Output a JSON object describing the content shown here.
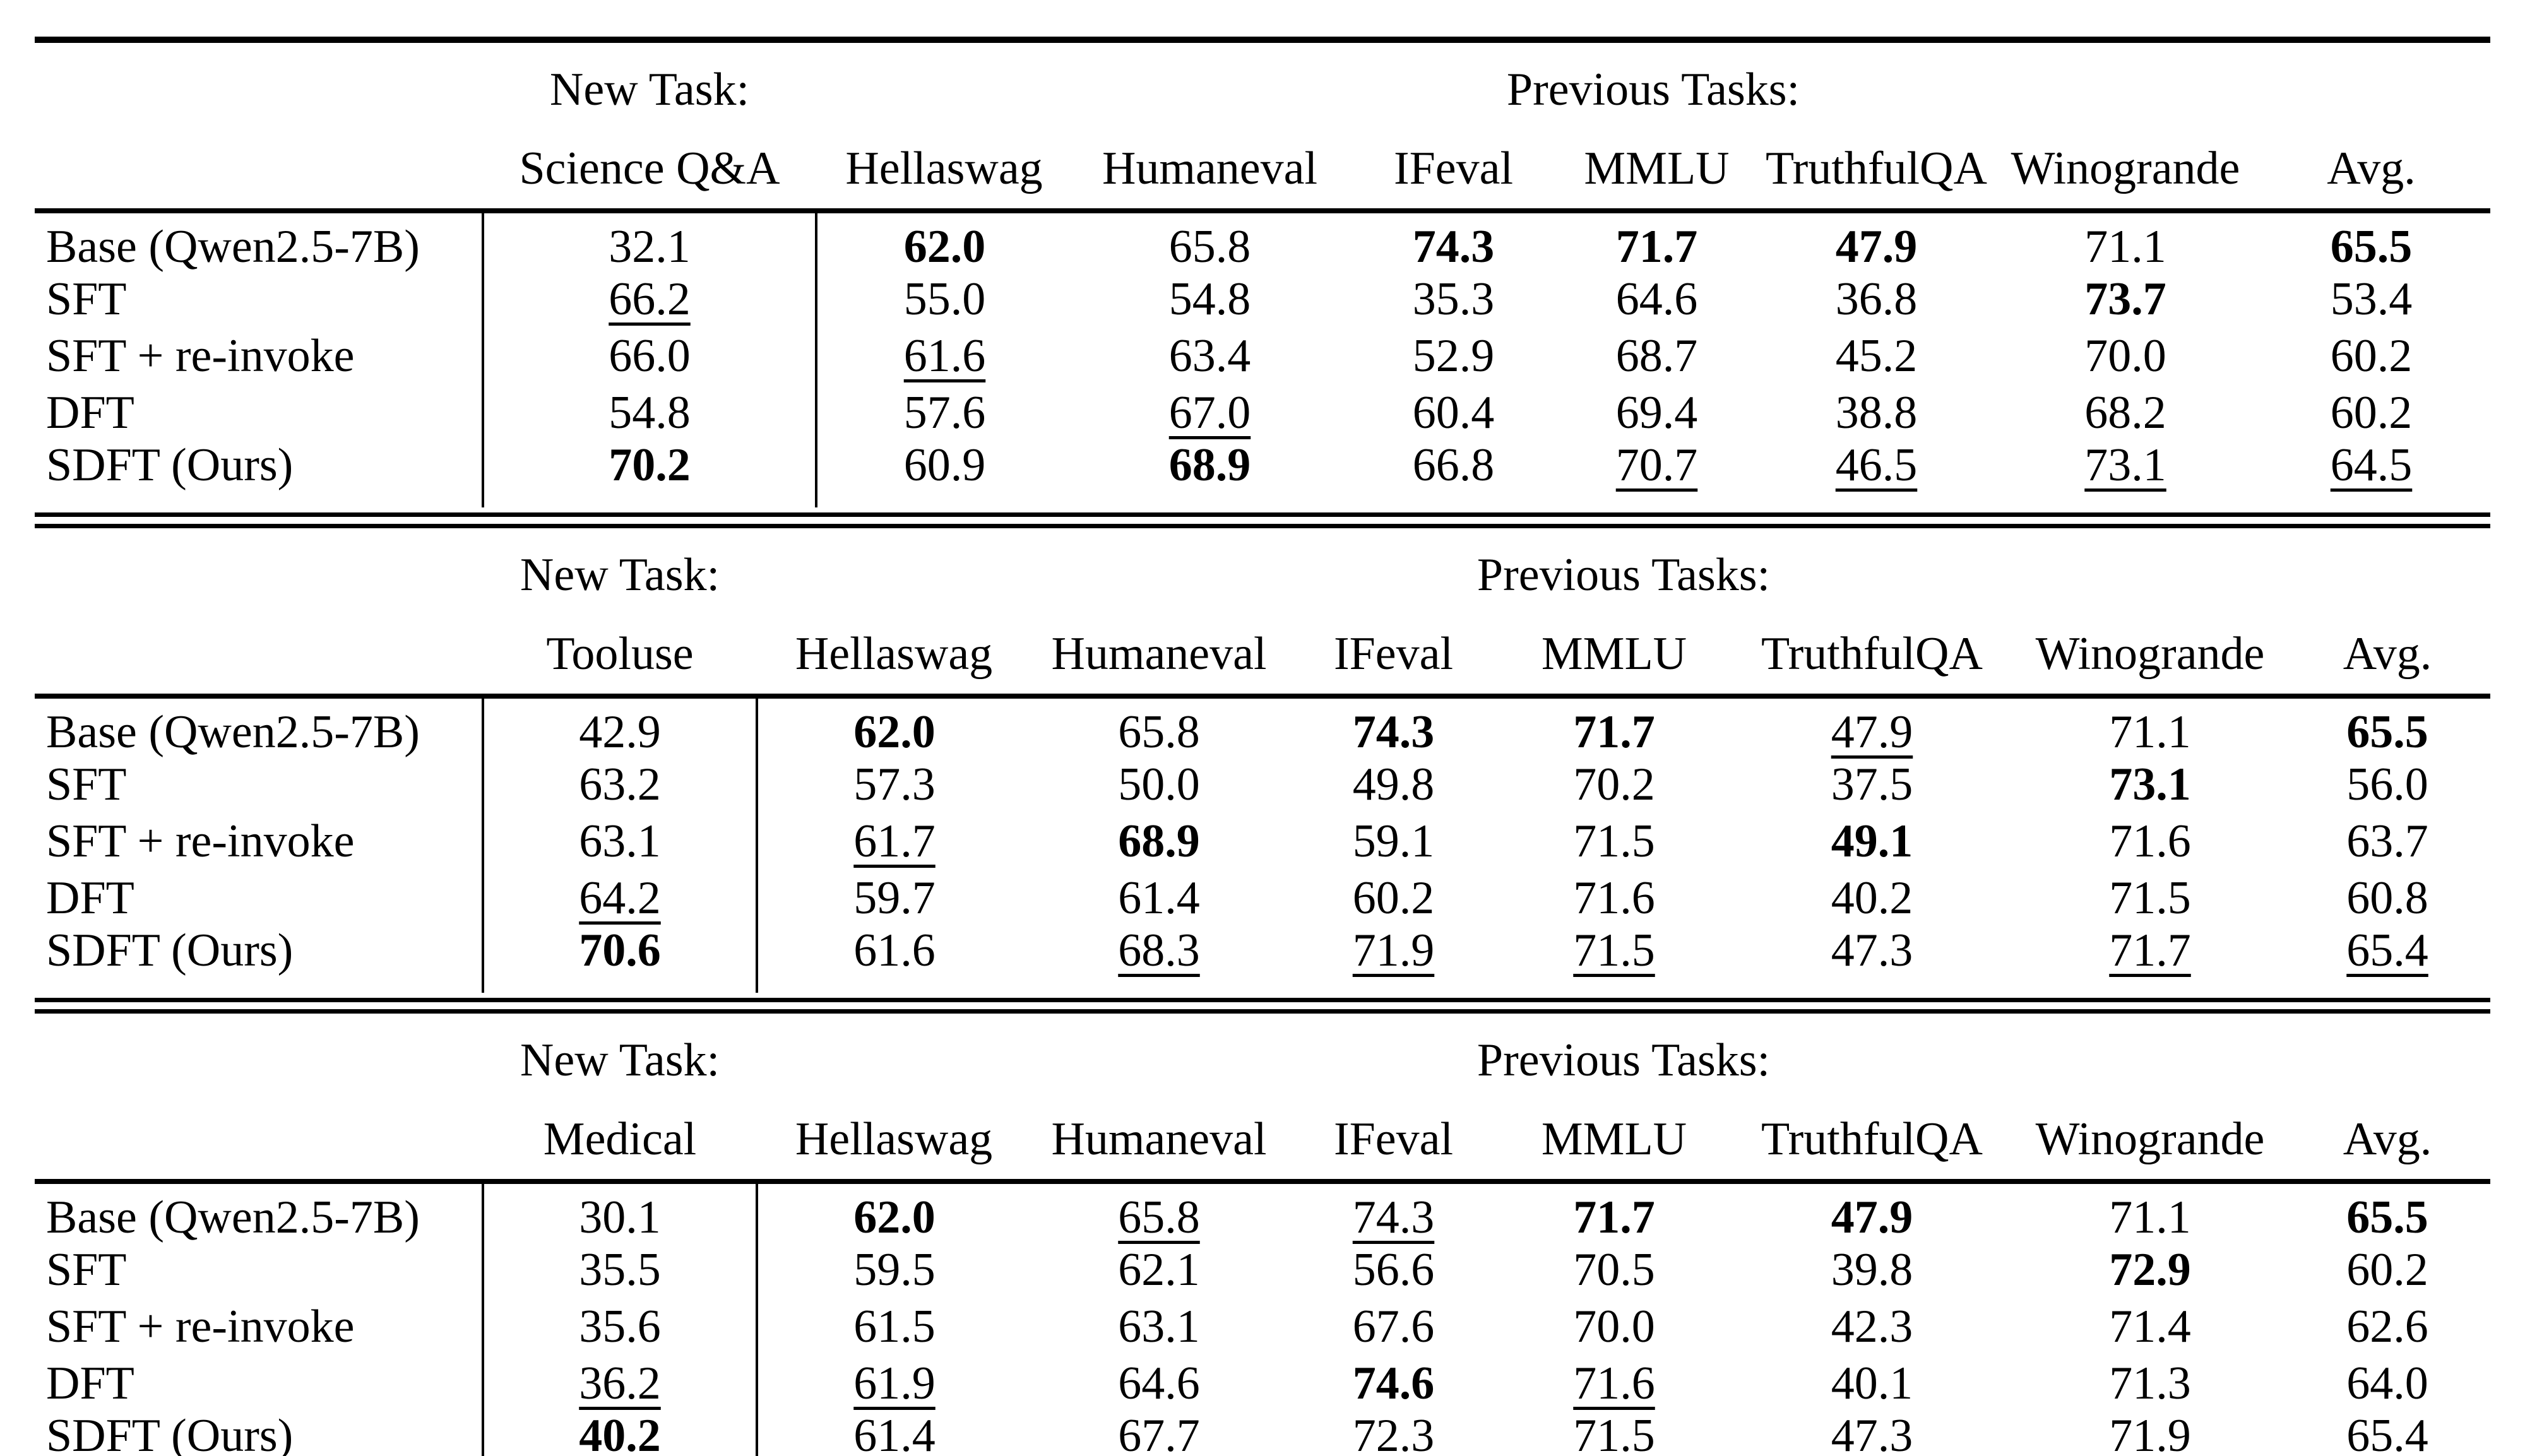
{
  "page": {
    "background": "#ffffff",
    "text_color": "#000000"
  },
  "tables": [
    {
      "new_task_header": "New Task:",
      "previous_tasks_header": "Previous Tasks:",
      "new_task_column": "Science Q&A",
      "previous_columns": [
        "Hellaswag",
        "Humaneval",
        "IFeval",
        "MMLU",
        "TruthfulQA",
        "Winogrande",
        "Avg."
      ],
      "rows": [
        {
          "label": "Base (Qwen2.5-7B)",
          "new_task": {
            "v": "32.1",
            "s": ""
          },
          "cells": [
            {
              "v": "62.0",
              "s": "b"
            },
            {
              "v": "65.8",
              "s": ""
            },
            {
              "v": "74.3",
              "s": "b"
            },
            {
              "v": "71.7",
              "s": "b"
            },
            {
              "v": "47.9",
              "s": "b"
            },
            {
              "v": "71.1",
              "s": ""
            },
            {
              "v": "65.5",
              "s": "b"
            }
          ]
        },
        {
          "label": "SFT",
          "new_task": {
            "v": "66.2",
            "s": "u"
          },
          "cells": [
            {
              "v": "55.0",
              "s": ""
            },
            {
              "v": "54.8",
              "s": ""
            },
            {
              "v": "35.3",
              "s": ""
            },
            {
              "v": "64.6",
              "s": ""
            },
            {
              "v": "36.8",
              "s": ""
            },
            {
              "v": "73.7",
              "s": "b"
            },
            {
              "v": "53.4",
              "s": ""
            }
          ]
        },
        {
          "label": "SFT + re-invoke",
          "new_task": {
            "v": "66.0",
            "s": ""
          },
          "cells": [
            {
              "v": "61.6",
              "s": "u"
            },
            {
              "v": "63.4",
              "s": ""
            },
            {
              "v": "52.9",
              "s": ""
            },
            {
              "v": "68.7",
              "s": ""
            },
            {
              "v": "45.2",
              "s": ""
            },
            {
              "v": "70.0",
              "s": ""
            },
            {
              "v": "60.2",
              "s": ""
            }
          ]
        },
        {
          "label": "DFT",
          "new_task": {
            "v": "54.8",
            "s": ""
          },
          "cells": [
            {
              "v": "57.6",
              "s": ""
            },
            {
              "v": "67.0",
              "s": "u"
            },
            {
              "v": "60.4",
              "s": ""
            },
            {
              "v": "69.4",
              "s": ""
            },
            {
              "v": "38.8",
              "s": ""
            },
            {
              "v": "68.2",
              "s": ""
            },
            {
              "v": "60.2",
              "s": ""
            }
          ]
        },
        {
          "label": "SDFT (Ours)",
          "new_task": {
            "v": "70.2",
            "s": "b"
          },
          "cells": [
            {
              "v": "60.9",
              "s": ""
            },
            {
              "v": "68.9",
              "s": "b"
            },
            {
              "v": "66.8",
              "s": ""
            },
            {
              "v": "70.7",
              "s": "u"
            },
            {
              "v": "46.5",
              "s": "u"
            },
            {
              "v": "73.1",
              "s": "u"
            },
            {
              "v": "64.5",
              "s": "u"
            }
          ]
        }
      ]
    },
    {
      "new_task_header": "New Task:",
      "previous_tasks_header": "Previous Tasks:",
      "new_task_column": "Tooluse",
      "previous_columns": [
        "Hellaswag",
        "Humaneval",
        "IFeval",
        "MMLU",
        "TruthfulQA",
        "Winogrande",
        "Avg."
      ],
      "rows": [
        {
          "label": "Base (Qwen2.5-7B)",
          "new_task": {
            "v": "42.9",
            "s": ""
          },
          "cells": [
            {
              "v": "62.0",
              "s": "b"
            },
            {
              "v": "65.8",
              "s": ""
            },
            {
              "v": "74.3",
              "s": "b"
            },
            {
              "v": "71.7",
              "s": "b"
            },
            {
              "v": "47.9",
              "s": "u"
            },
            {
              "v": "71.1",
              "s": ""
            },
            {
              "v": "65.5",
              "s": "b"
            }
          ]
        },
        {
          "label": "SFT",
          "new_task": {
            "v": "63.2",
            "s": ""
          },
          "cells": [
            {
              "v": "57.3",
              "s": ""
            },
            {
              "v": "50.0",
              "s": ""
            },
            {
              "v": "49.8",
              "s": ""
            },
            {
              "v": "70.2",
              "s": ""
            },
            {
              "v": "37.5",
              "s": ""
            },
            {
              "v": "73.1",
              "s": "b"
            },
            {
              "v": "56.0",
              "s": ""
            }
          ]
        },
        {
          "label": "SFT + re-invoke",
          "new_task": {
            "v": "63.1",
            "s": ""
          },
          "cells": [
            {
              "v": "61.7",
              "s": "u"
            },
            {
              "v": "68.9",
              "s": "b"
            },
            {
              "v": "59.1",
              "s": ""
            },
            {
              "v": "71.5",
              "s": ""
            },
            {
              "v": "49.1",
              "s": "b"
            },
            {
              "v": "71.6",
              "s": ""
            },
            {
              "v": "63.7",
              "s": ""
            }
          ]
        },
        {
          "label": "DFT",
          "new_task": {
            "v": "64.2",
            "s": "u"
          },
          "cells": [
            {
              "v": "59.7",
              "s": ""
            },
            {
              "v": "61.4",
              "s": ""
            },
            {
              "v": "60.2",
              "s": ""
            },
            {
              "v": "71.6",
              "s": ""
            },
            {
              "v": "40.2",
              "s": ""
            },
            {
              "v": "71.5",
              "s": ""
            },
            {
              "v": "60.8",
              "s": ""
            }
          ]
        },
        {
          "label": "SDFT (Ours)",
          "new_task": {
            "v": "70.6",
            "s": "b"
          },
          "cells": [
            {
              "v": "61.6",
              "s": ""
            },
            {
              "v": "68.3",
              "s": "u"
            },
            {
              "v": "71.9",
              "s": "u"
            },
            {
              "v": "71.5",
              "s": "u"
            },
            {
              "v": "47.3",
              "s": ""
            },
            {
              "v": "71.7",
              "s": "u"
            },
            {
              "v": "65.4",
              "s": "u"
            }
          ]
        }
      ]
    },
    {
      "new_task_header": "New Task:",
      "previous_tasks_header": "Previous Tasks:",
      "new_task_column": "Medical",
      "previous_columns": [
        "Hellaswag",
        "Humaneval",
        "IFeval",
        "MMLU",
        "TruthfulQA",
        "Winogrande",
        "Avg."
      ],
      "rows": [
        {
          "label": "Base (Qwen2.5-7B)",
          "new_task": {
            "v": "30.1",
            "s": ""
          },
          "cells": [
            {
              "v": "62.0",
              "s": "b"
            },
            {
              "v": "65.8",
              "s": "u"
            },
            {
              "v": "74.3",
              "s": "u"
            },
            {
              "v": "71.7",
              "s": "b"
            },
            {
              "v": "47.9",
              "s": "b"
            },
            {
              "v": "71.1",
              "s": ""
            },
            {
              "v": "65.5",
              "s": "b"
            }
          ]
        },
        {
          "label": "SFT",
          "new_task": {
            "v": "35.5",
            "s": ""
          },
          "cells": [
            {
              "v": "59.5",
              "s": ""
            },
            {
              "v": "62.1",
              "s": ""
            },
            {
              "v": "56.6",
              "s": ""
            },
            {
              "v": "70.5",
              "s": ""
            },
            {
              "v": "39.8",
              "s": ""
            },
            {
              "v": "72.9",
              "s": "b"
            },
            {
              "v": "60.2",
              "s": ""
            }
          ]
        },
        {
          "label": "SFT + re-invoke",
          "new_task": {
            "v": "35.6",
            "s": ""
          },
          "cells": [
            {
              "v": "61.5",
              "s": ""
            },
            {
              "v": "63.1",
              "s": ""
            },
            {
              "v": "67.6",
              "s": ""
            },
            {
              "v": "70.0",
              "s": ""
            },
            {
              "v": "42.3",
              "s": ""
            },
            {
              "v": "71.4",
              "s": ""
            },
            {
              "v": "62.6",
              "s": ""
            }
          ]
        },
        {
          "label": "DFT",
          "new_task": {
            "v": "36.2",
            "s": "u"
          },
          "cells": [
            {
              "v": "61.9",
              "s": "u"
            },
            {
              "v": "64.6",
              "s": ""
            },
            {
              "v": "74.6",
              "s": "b"
            },
            {
              "v": "71.6",
              "s": "u"
            },
            {
              "v": "40.1",
              "s": ""
            },
            {
              "v": "71.3",
              "s": ""
            },
            {
              "v": "64.0",
              "s": ""
            }
          ]
        },
        {
          "label": "SDFT (Ours)",
          "new_task": {
            "v": "40.2",
            "s": "b"
          },
          "cells": [
            {
              "v": "61.4",
              "s": ""
            },
            {
              "v": "67.7",
              "s": ""
            },
            {
              "v": "72.3",
              "s": ""
            },
            {
              "v": "71.5",
              "s": ""
            },
            {
              "v": "47.3",
              "s": "u"
            },
            {
              "v": "71.9",
              "s": "u"
            },
            {
              "v": "65.4",
              "s": "u"
            }
          ]
        }
      ]
    }
  ]
}
